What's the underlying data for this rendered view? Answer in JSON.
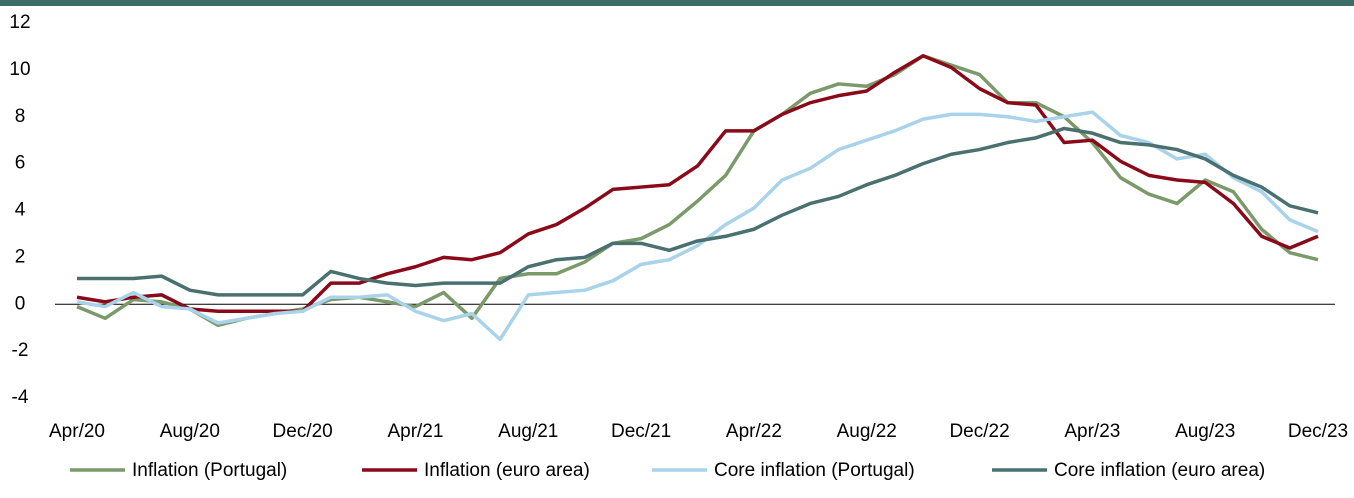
{
  "chart_data": {
    "type": "line",
    "categories": [
      "Apr/20",
      null,
      null,
      null,
      "Aug/20",
      null,
      null,
      null,
      "Dec/20",
      null,
      null,
      null,
      "Apr/21",
      null,
      null,
      null,
      "Aug/21",
      null,
      null,
      null,
      "Dec/21",
      null,
      null,
      null,
      "Apr/22",
      null,
      null,
      null,
      "Aug/22",
      null,
      null,
      null,
      "Dec/22",
      null,
      null,
      null,
      "Apr/23",
      null,
      null,
      null,
      "Aug/23",
      null,
      null,
      null,
      "Dec/23"
    ],
    "series": [
      {
        "name": "Inflation (Portugal)",
        "color": "#7a9a6a",
        "values": [
          -0.1,
          -0.6,
          0.2,
          0.1,
          -0.2,
          -0.9,
          -0.6,
          -0.4,
          -0.2,
          0.2,
          0.3,
          0.1,
          -0.1,
          0.5,
          -0.6,
          1.1,
          1.3,
          1.3,
          1.8,
          2.6,
          2.8,
          3.4,
          4.4,
          5.5,
          7.4,
          8.1,
          9.0,
          9.4,
          9.3,
          9.8,
          10.6,
          10.2,
          9.8,
          8.6,
          8.6,
          8.0,
          6.9,
          5.4,
          4.7,
          4.3,
          5.3,
          4.8,
          3.2,
          2.2,
          1.9
        ]
      },
      {
        "name": "Inflation (euro area)",
        "color": "#8b0a1a",
        "values": [
          0.3,
          0.1,
          0.3,
          0.4,
          -0.2,
          -0.3,
          -0.3,
          -0.3,
          -0.3,
          0.9,
          0.9,
          1.3,
          1.6,
          2.0,
          1.9,
          2.2,
          3.0,
          3.4,
          4.1,
          4.9,
          5.0,
          5.1,
          5.9,
          7.4,
          7.4,
          8.1,
          8.6,
          8.9,
          9.1,
          9.9,
          10.6,
          10.1,
          9.2,
          8.6,
          8.5,
          6.9,
          7.0,
          6.1,
          5.5,
          5.3,
          5.2,
          4.3,
          2.9,
          2.4,
          2.9
        ]
      },
      {
        "name": "Core inflation (Portugal)",
        "color": "#a9d3ea",
        "values": [
          0.1,
          -0.1,
          0.5,
          -0.1,
          -0.2,
          -0.8,
          -0.6,
          -0.4,
          -0.3,
          0.3,
          0.3,
          0.4,
          -0.3,
          -0.7,
          -0.4,
          -1.5,
          0.4,
          0.5,
          0.6,
          1.0,
          1.7,
          1.9,
          2.5,
          3.4,
          4.1,
          5.3,
          5.8,
          6.6,
          7.0,
          7.4,
          7.9,
          8.1,
          8.1,
          8.0,
          7.8,
          8.0,
          8.2,
          7.2,
          6.9,
          6.2,
          6.4,
          5.4,
          4.8,
          3.6,
          3.1
        ]
      },
      {
        "name": "Core inflation (euro area)",
        "color": "#4a7070",
        "values": [
          1.1,
          1.1,
          1.1,
          1.2,
          0.6,
          0.4,
          0.4,
          0.4,
          0.4,
          1.4,
          1.1,
          0.9,
          0.8,
          0.9,
          0.9,
          0.9,
          1.6,
          1.9,
          2.0,
          2.6,
          2.6,
          2.3,
          2.7,
          2.9,
          3.2,
          3.8,
          4.3,
          4.6,
          5.1,
          5.5,
          6.0,
          6.4,
          6.6,
          6.9,
          7.1,
          7.5,
          7.3,
          6.9,
          6.8,
          6.6,
          6.2,
          5.5,
          5.0,
          4.2,
          3.9
        ]
      }
    ],
    "ylim": [
      -4,
      12
    ],
    "yticks": [
      -4,
      -2,
      0,
      2,
      4,
      6,
      8,
      10,
      12
    ],
    "grid": false
  }
}
